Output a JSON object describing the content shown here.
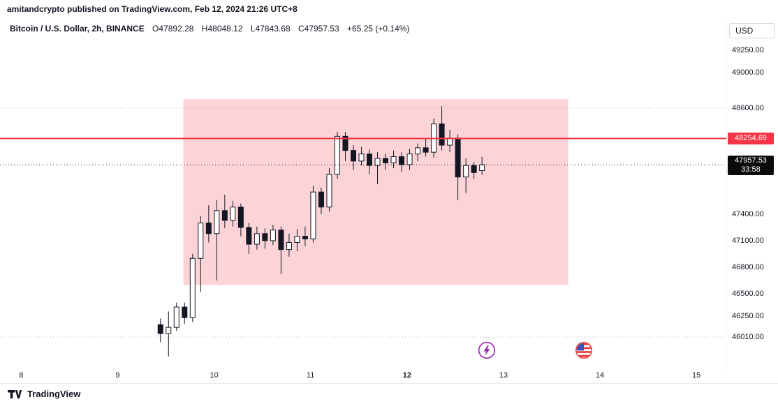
{
  "attribution": "amitandcrypto published on TradingView.com, Feb 12, 2024 21:26 UTC+8",
  "legend": {
    "symbol": "Bitcoin / U.S. Dollar, 2h, BINANCE",
    "open_label": "O",
    "open_value": "47892.28",
    "high_label": "H",
    "high_value": "48048.12",
    "low_label": "L",
    "low_value": "47843.68",
    "close_label": "C",
    "close_value": "47957.53",
    "change": "+65.25 (+0.14%)"
  },
  "price_axis": {
    "currency_button": "USD",
    "tick_labels": [
      "49250.00",
      "49000.00",
      "48600.00",
      "47400.00",
      "47100.00",
      "46800.00",
      "46500.00",
      "46250.00",
      "46010.00"
    ],
    "red_tag": "48254.69",
    "last_price_tag": "47957.53",
    "countdown": "33:58"
  },
  "time_axis": {
    "tick_labels": [
      "8",
      "9",
      "10",
      "11",
      "12",
      "13",
      "14",
      "15"
    ],
    "bold_label": "12"
  },
  "footer": {
    "brand": "TradingView"
  },
  "colors": {
    "accent_red": "#f23645",
    "tag_black": "#0b0b0b",
    "text": "#131722",
    "event_purple": "#9b27af",
    "event_flag_red": "#e53935",
    "event_flag_blue": "#3f51b5"
  },
  "icons": {
    "lightning": "lightning-event-icon",
    "us_flag": "us-flag-event-icon",
    "logo": "tradingview-logo-icon"
  },
  "chart_data": {
    "type": "candlestick",
    "title": "Bitcoin / U.S. Dollar, 2h, BINANCE",
    "x_axis": {
      "unit": "day of Feb 2024",
      "min": 7.78,
      "max": 15.31,
      "ticks": [
        8,
        9,
        10,
        11,
        12,
        13,
        14,
        15
      ]
    },
    "y_axis": {
      "unit": "USD",
      "min": 45640,
      "max": 49600
    },
    "candles_start_day": 9.44,
    "candle_interval_days": 0.083333,
    "colors": {
      "up_fill": "#ffffff",
      "down_fill": "#131722",
      "border": "#131722",
      "wick": "#131722"
    },
    "candles": [
      [
        46150,
        46220,
        45950,
        46050
      ],
      [
        46050,
        46300,
        45790,
        46120
      ],
      [
        46120,
        46400,
        46080,
        46350
      ],
      [
        46350,
        46400,
        46160,
        46230
      ],
      [
        46230,
        46950,
        46180,
        46900
      ],
      [
        46900,
        47380,
        46520,
        47300
      ],
      [
        47300,
        47500,
        47080,
        47180
      ],
      [
        47180,
        47560,
        46650,
        47440
      ],
      [
        47440,
        47620,
        47240,
        47330
      ],
      [
        47330,
        47550,
        47260,
        47480
      ],
      [
        47480,
        47520,
        47150,
        47250
      ],
      [
        47250,
        47300,
        46950,
        47060
      ],
      [
        47060,
        47260,
        47000,
        47180
      ],
      [
        47180,
        47240,
        47010,
        47100
      ],
      [
        47100,
        47280,
        47050,
        47220
      ],
      [
        47220,
        47260,
        46720,
        47000
      ],
      [
        47000,
        47180,
        46920,
        47080
      ],
      [
        47080,
        47230,
        46980,
        47150
      ],
      [
        47150,
        47260,
        47040,
        47120
      ],
      [
        47120,
        47720,
        47080,
        47650
      ],
      [
        47650,
        47700,
        47400,
        47480
      ],
      [
        47480,
        47920,
        47430,
        47850
      ],
      [
        47850,
        48330,
        47800,
        48280
      ],
      [
        48280,
        48330,
        48000,
        48120
      ],
      [
        48120,
        48180,
        47900,
        48000
      ],
      [
        48000,
        48160,
        47950,
        48080
      ],
      [
        48080,
        48130,
        47850,
        47950
      ],
      [
        47950,
        48100,
        47740,
        48030
      ],
      [
        48030,
        48080,
        47900,
        47980
      ],
      [
        47980,
        48120,
        47920,
        48050
      ],
      [
        48050,
        48100,
        47880,
        47960
      ],
      [
        47960,
        48140,
        47900,
        48080
      ],
      [
        48080,
        48200,
        48000,
        48150
      ],
      [
        48150,
        48250,
        48050,
        48100
      ],
      [
        48100,
        48480,
        48040,
        48420
      ],
      [
        48420,
        48620,
        48120,
        48180
      ],
      [
        48180,
        48350,
        48100,
        48260
      ],
      [
        48260,
        48300,
        47560,
        47820
      ],
      [
        47820,
        48030,
        47640,
        47950
      ],
      [
        47950,
        47990,
        47800,
        47870
      ],
      [
        47892.28,
        48048.12,
        47843.68,
        47957.53
      ]
    ],
    "price_lines": [
      {
        "price": 48600.0,
        "color": "#b2b5be",
        "style": "dotted",
        "width": 1,
        "layer": "below"
      },
      {
        "price": 46010.0,
        "color": "#b2b5be",
        "style": "dotted",
        "width": 1,
        "layer": "below"
      },
      {
        "price": 47957.53,
        "color": "#131722",
        "style": "dotted",
        "width": 1,
        "layer": "above"
      },
      {
        "price": 48254.69,
        "color": "#f23645",
        "style": "solid",
        "width": 2,
        "layer": "above"
      }
    ],
    "box_annotation": {
      "time_start": 9.68,
      "time_end": 13.67,
      "price_top": 48700,
      "price_bottom": 46600,
      "fill": "rgba(242,54,69,0.22)"
    },
    "event_markers": [
      {
        "day": 12.83,
        "type": "lightning"
      },
      {
        "day": 13.83,
        "type": "us-flag"
      }
    ]
  }
}
